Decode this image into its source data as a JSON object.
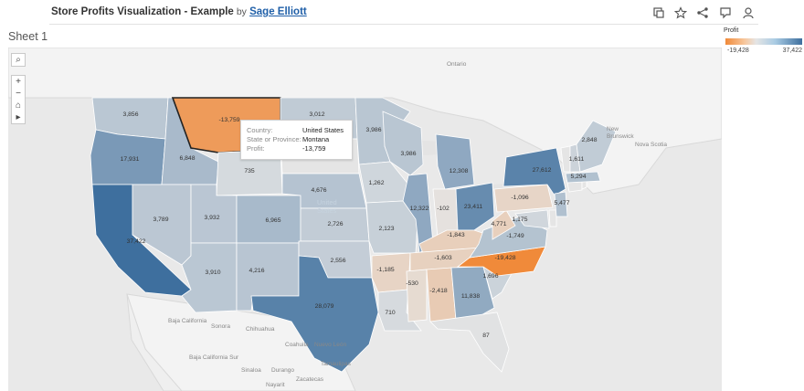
{
  "header": {
    "title": "Store Profits Visualization - Example",
    "by": "by",
    "author": "Sage Elliott",
    "tools": [
      "duplicate-icon",
      "star-icon",
      "share-icon",
      "comment-icon",
      "subscribe-icon"
    ]
  },
  "sheet_name": "Sheet 1",
  "legend": {
    "title": "Profit",
    "min": "-19,428",
    "max": "37,422",
    "colors": [
      "#f08a3a",
      "#e5e5e5",
      "#3e6f9e"
    ]
  },
  "map_controls": {
    "search": "⌕",
    "zoom_in": "+",
    "zoom_out": "−",
    "home": "⌂",
    "expand": "▸"
  },
  "place_labels": {
    "ontario": "Ontario",
    "new_brunswick": "New Brunswick",
    "nova_scotia": "Nova Scotia",
    "baja_california": "Baja California",
    "baja_california_sur": "Baja California Sur",
    "sonora": "Sonora",
    "chihuahua": "Chihuahua",
    "coahuila": "Coahuila",
    "nuevo_leon": "Nuevo León",
    "tamaulipas": "Tamaulipas",
    "sinaloa": "Sinaloa",
    "durango": "Durango",
    "zacatecas": "Zacatecas",
    "nayarit": "Nayarit",
    "united_states": "United States"
  },
  "tooltip": {
    "country_label": "Country:",
    "country": "United States",
    "state_label": "State or Province:",
    "state": "Montana",
    "profit_label": "Profit:",
    "profit": "-13,759"
  },
  "states": [
    {
      "name": "Washington",
      "profit": 3856,
      "label": "3,856"
    },
    {
      "name": "Oregon",
      "profit": 17931,
      "label": "17,931"
    },
    {
      "name": "California",
      "profit": 37422,
      "label": "37,422"
    },
    {
      "name": "Idaho",
      "profit": 6848,
      "label": "6,848"
    },
    {
      "name": "Nevada",
      "profit": 3789,
      "label": "3,789"
    },
    {
      "name": "Montana",
      "profit": -13759,
      "label": "-13,759"
    },
    {
      "name": "Wyoming",
      "profit": 735,
      "label": "735"
    },
    {
      "name": "Utah",
      "profit": 3932,
      "label": "3,932"
    },
    {
      "name": "Arizona",
      "profit": 3910,
      "label": "3,910"
    },
    {
      "name": "Colorado",
      "profit": 6965,
      "label": "6,965"
    },
    {
      "name": "New Mexico",
      "profit": 4216,
      "label": "4,216"
    },
    {
      "name": "North Dakota",
      "profit": 3012,
      "label": "3,012"
    },
    {
      "name": "South Dakota",
      "profit": 0,
      "label": ""
    },
    {
      "name": "Nebraska",
      "profit": 4676,
      "label": "4,676"
    },
    {
      "name": "Kansas",
      "profit": 2726,
      "label": "2,726"
    },
    {
      "name": "Oklahoma",
      "profit": 2556,
      "label": "2,556"
    },
    {
      "name": "Texas",
      "profit": 28079,
      "label": "28,079"
    },
    {
      "name": "Minnesota",
      "profit": 3986,
      "label": "3,986"
    },
    {
      "name": "Iowa",
      "profit": 1262,
      "label": "1,262"
    },
    {
      "name": "Missouri",
      "profit": 2123,
      "label": "2,123"
    },
    {
      "name": "Arkansas",
      "profit": -1185,
      "label": "-1,185"
    },
    {
      "name": "Louisiana",
      "profit": 710,
      "label": "710"
    },
    {
      "name": "Wisconsin",
      "profit": 3986,
      "label": "3,986"
    },
    {
      "name": "Illinois",
      "profit": 12322,
      "label": "12,322"
    },
    {
      "name": "Michigan",
      "profit": 12308,
      "label": "12,308"
    },
    {
      "name": "Indiana",
      "profit": -102,
      "label": "-102"
    },
    {
      "name": "Ohio",
      "profit": 23411,
      "label": "23,411"
    },
    {
      "name": "Kentucky",
      "profit": -1843,
      "label": "-1,843"
    },
    {
      "name": "Tennessee",
      "profit": -1603,
      "label": "-1,603"
    },
    {
      "name": "Mississippi",
      "profit": -530,
      "label": "-530"
    },
    {
      "name": "Alabama",
      "profit": -2418,
      "label": "-2,418"
    },
    {
      "name": "Georgia",
      "profit": 11838,
      "label": "11,838"
    },
    {
      "name": "Florida",
      "profit": 87,
      "label": "87"
    },
    {
      "name": "South Carolina",
      "profit": 1696,
      "label": "1,696"
    },
    {
      "name": "North Carolina",
      "profit": -19428,
      "label": "-19,428"
    },
    {
      "name": "Virginia",
      "profit": 4771,
      "label": "4,771"
    },
    {
      "name": "West Virginia",
      "profit": -1749,
      "label": "-1,749"
    },
    {
      "name": "Pennsylvania",
      "profit": -1096,
      "label": "-1,096"
    },
    {
      "name": "New York",
      "profit": 27612,
      "label": "27,612"
    },
    {
      "name": "Maryland",
      "profit": 1175,
      "label": "1,175"
    },
    {
      "name": "Delaware",
      "profit": 0,
      "label": ""
    },
    {
      "name": "New Jersey",
      "profit": 5477,
      "label": "5,477"
    },
    {
      "name": "Connecticut",
      "profit": 0,
      "label": ""
    },
    {
      "name": "Rhode Island",
      "profit": 0,
      "label": ""
    },
    {
      "name": "Massachusetts",
      "profit": 5294,
      "label": "5,294"
    },
    {
      "name": "Vermont",
      "profit": 0,
      "label": ""
    },
    {
      "name": "New Hampshire",
      "profit": 1611,
      "label": "1,611"
    },
    {
      "name": "Maine",
      "profit": 2848,
      "label": "2,848"
    }
  ]
}
